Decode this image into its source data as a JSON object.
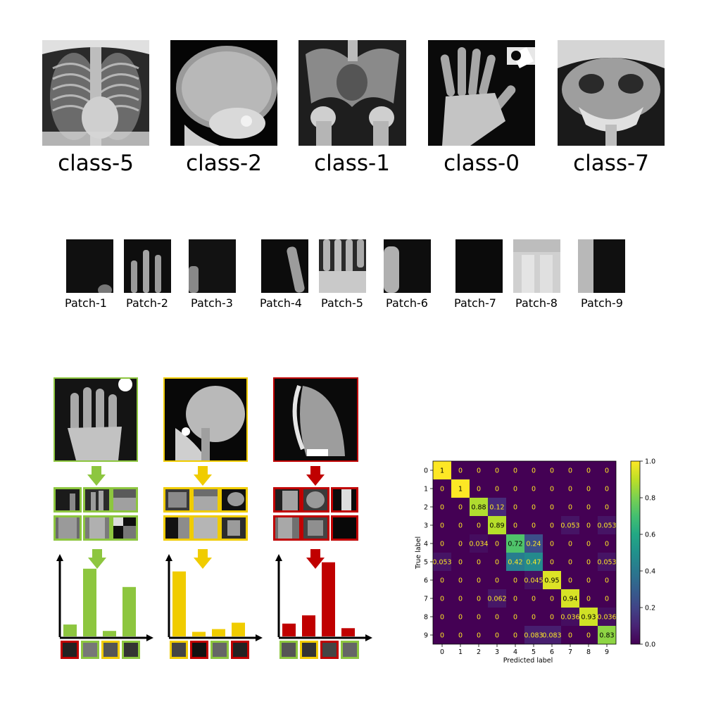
{
  "class_images": [
    {
      "label": "class-5",
      "subject": "chest-xray"
    },
    {
      "label": "class-2",
      "subject": "skull-xray"
    },
    {
      "label": "class-1",
      "subject": "pelvis-xray"
    },
    {
      "label": "class-0",
      "subject": "hand-xray"
    },
    {
      "label": "class-7",
      "subject": "skull-frontal-xray"
    }
  ],
  "patches": [
    "Patch-1",
    "Patch-2",
    "Patch-3",
    "Patch-4",
    "Patch-5",
    "Patch-6",
    "Patch-7",
    "Patch-8",
    "Patch-9"
  ],
  "pipeline": [
    {
      "color": "#8dc63f",
      "subject": "hand-xray",
      "bar_values": [
        0.13,
        0.74,
        0.06,
        0.54
      ],
      "mini_borders": [
        "#c00000",
        "#8dc63f",
        "#f0cc00",
        "#8dc63f"
      ]
    },
    {
      "color": "#f0cc00",
      "subject": "skull-lateral-xray",
      "bar_values": [
        0.71,
        0.05,
        0.08,
        0.15
      ],
      "mini_borders": [
        "#f0cc00",
        "#c00000",
        "#8dc63f",
        "#c00000"
      ]
    },
    {
      "color": "#c00000",
      "subject": "chest-lateral-xray",
      "bar_values": [
        0.14,
        0.23,
        0.81,
        0.09
      ],
      "mini_borders": [
        "#8dc63f",
        "#f0cc00",
        "#c00000",
        "#8dc63f"
      ]
    }
  ],
  "chart_data": {
    "type": "heatmap",
    "xlabel": "Predicted label",
    "ylabel": "True label",
    "x_categories": [
      "0",
      "1",
      "2",
      "3",
      "4",
      "5",
      "6",
      "7",
      "8",
      "9"
    ],
    "y_categories": [
      "0",
      "1",
      "2",
      "3",
      "4",
      "5",
      "6",
      "7",
      "8",
      "9"
    ],
    "matrix": [
      [
        1,
        0,
        0,
        0,
        0,
        0,
        0,
        0,
        0,
        0
      ],
      [
        0,
        1,
        0,
        0,
        0,
        0,
        0,
        0,
        0,
        0
      ],
      [
        0,
        0,
        0.88,
        0.12,
        0,
        0,
        0,
        0,
        0,
        0
      ],
      [
        0,
        0,
        0,
        0.89,
        0,
        0,
        0,
        0.053,
        0,
        0.053
      ],
      [
        0,
        0,
        0.034,
        0,
        0.72,
        0.24,
        0,
        0,
        0,
        0
      ],
      [
        0.053,
        0,
        0,
        0,
        0.42,
        0.47,
        0,
        0,
        0,
        0.053
      ],
      [
        0,
        0,
        0,
        0,
        0,
        0.045,
        0.95,
        0,
        0,
        0
      ],
      [
        0,
        0,
        0,
        0.062,
        0,
        0,
        0,
        0.94,
        0,
        0
      ],
      [
        0,
        0,
        0,
        0,
        0,
        0,
        0,
        0.036,
        0.93,
        0.036
      ],
      [
        0,
        0,
        0,
        0,
        0,
        0.083,
        0.083,
        0,
        0,
        0.83
      ]
    ],
    "colorbar_ticks": [
      "0.0",
      "0.2",
      "0.4",
      "0.6",
      "0.8",
      "1.0"
    ],
    "colorbar_range": [
      0,
      1
    ],
    "colormap": "viridis"
  }
}
